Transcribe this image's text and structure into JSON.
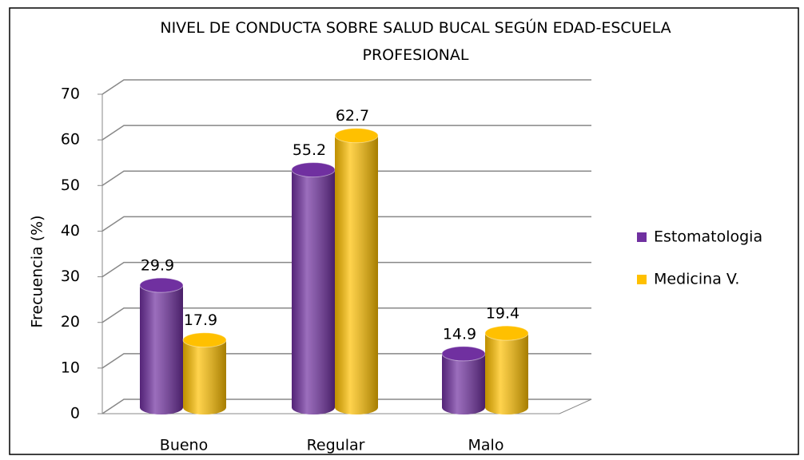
{
  "chart_data": {
    "type": "bar",
    "title": "NIVEL DE CONDUCTA SOBRE SALUD BUCAL SEGÚN EDAD-ESCUELA PROFESIONAL",
    "y_label": "Frecuencia (%)",
    "categories": [
      "Bueno",
      "Regular",
      "Malo"
    ],
    "series": [
      {
        "name": "Estomatologia",
        "color": "#7030a0",
        "values": [
          29.9,
          55.2,
          14.9
        ]
      },
      {
        "name": "Medicina V.",
        "color": "#ffc000",
        "values": [
          17.9,
          62.7,
          19.4
        ]
      }
    ],
    "ylim": [
      0,
      70
    ],
    "yticks": [
      0,
      10,
      20,
      30,
      40,
      50,
      60,
      70
    ],
    "grid": true,
    "legend": "right"
  }
}
